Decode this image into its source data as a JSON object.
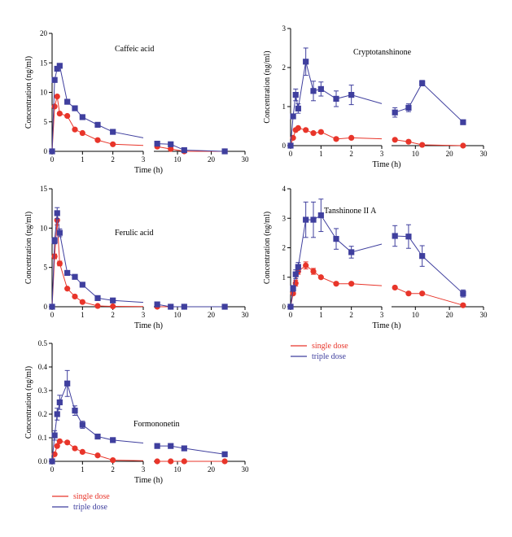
{
  "colors": {
    "single": "#e8352a",
    "triple": "#3f3f9e"
  },
  "legend": {
    "single_label": "single dose",
    "triple_label": "triple dose"
  },
  "chart_data": [
    {
      "type": "line",
      "title": "Caffeic acid",
      "xlabel": "Time (h)",
      "ylabel": "Concentration (ng/ml)",
      "broken_x_axis": true,
      "x_segment_1": [
        0,
        3
      ],
      "x_segment_2": [
        3,
        30
      ],
      "x_ticks_1": [
        0,
        1,
        2,
        3
      ],
      "x_ticks_2": [
        10,
        20,
        30
      ],
      "ylim": [
        0,
        20
      ],
      "y_ticks": [
        0,
        5,
        10,
        15,
        20
      ],
      "series": [
        {
          "name": "single dose",
          "x": [
            0,
            0.083,
            0.167,
            0.25,
            0.5,
            0.75,
            1,
            1.5,
            2,
            4,
            8,
            12,
            24
          ],
          "y": [
            0,
            7.6,
            9.3,
            6.4,
            6.0,
            3.7,
            3.1,
            1.9,
            1.2,
            0.8,
            0.4,
            0.0,
            0.0
          ],
          "err": []
        },
        {
          "name": "triple dose",
          "x": [
            0,
            0.083,
            0.167,
            0.25,
            0.5,
            0.75,
            1,
            1.5,
            2,
            4,
            8,
            12,
            24
          ],
          "y": [
            0,
            12.1,
            14.0,
            14.5,
            8.4,
            7.3,
            5.8,
            4.5,
            3.3,
            1.3,
            1.2,
            0.2,
            0.0
          ],
          "err": []
        }
      ]
    },
    {
      "type": "line",
      "title": "Cryptotanshinone",
      "xlabel": "Time (h)",
      "ylabel": "Concentration (ng/ml)",
      "broken_x_axis": true,
      "x_segment_1": [
        0,
        3
      ],
      "x_segment_2": [
        3,
        30
      ],
      "x_ticks_1": [
        0,
        1,
        2,
        3
      ],
      "x_ticks_2": [
        10,
        20,
        30
      ],
      "ylim": [
        0,
        3
      ],
      "y_ticks": [
        0,
        1,
        2,
        3
      ],
      "series": [
        {
          "name": "single dose",
          "x": [
            0,
            0.083,
            0.167,
            0.25,
            0.5,
            0.75,
            1,
            1.5,
            2,
            4,
            8,
            12,
            24
          ],
          "y": [
            0,
            0.2,
            0.4,
            0.45,
            0.4,
            0.32,
            0.35,
            0.17,
            0.2,
            0.15,
            0.1,
            0.02,
            0.0
          ],
          "err": []
        },
        {
          "name": "triple dose",
          "x": [
            0,
            0.083,
            0.167,
            0.25,
            0.5,
            0.75,
            1,
            1.5,
            2,
            4,
            8,
            12,
            24
          ],
          "y": [
            0,
            0.75,
            1.3,
            0.95,
            2.15,
            1.4,
            1.45,
            1.2,
            1.3,
            0.85,
            0.97,
            1.6,
            0.6
          ],
          "err": [
            0,
            0.05,
            0.15,
            0.12,
            0.35,
            0.25,
            0.18,
            0.2,
            0.25,
            0.12,
            0.1,
            0.07,
            0.03
          ]
        }
      ]
    },
    {
      "type": "line",
      "title": "Ferulic acid",
      "xlabel": "Time (h)",
      "ylabel": "Concentration (ng/ml)",
      "broken_x_axis": true,
      "x_segment_1": [
        0,
        3
      ],
      "x_segment_2": [
        3,
        30
      ],
      "x_ticks_1": [
        0,
        1,
        2,
        3
      ],
      "x_ticks_2": [
        10,
        20,
        30
      ],
      "ylim": [
        0,
        15
      ],
      "y_ticks": [
        0,
        5,
        10,
        15
      ],
      "series": [
        {
          "name": "single dose",
          "x": [
            0,
            0.083,
            0.167,
            0.25,
            0.5,
            0.75,
            1,
            1.5,
            2,
            4,
            8,
            12,
            24
          ],
          "y": [
            0,
            6.4,
            11.0,
            5.5,
            2.3,
            1.3,
            0.6,
            0.1,
            0.05,
            0.0,
            0.0,
            0.0,
            0.0
          ],
          "err": [
            0,
            0.3,
            0.6,
            0.3,
            0,
            0,
            0,
            0,
            0,
            0,
            0,
            0,
            0
          ]
        },
        {
          "name": "triple dose",
          "x": [
            0,
            0.083,
            0.167,
            0.25,
            0.5,
            0.75,
            1,
            1.5,
            2,
            4,
            8,
            12,
            24
          ],
          "y": [
            0,
            8.4,
            11.9,
            9.4,
            4.3,
            3.8,
            2.8,
            1.1,
            0.8,
            0.3,
            0.0,
            0.0,
            0.0
          ],
          "err": [
            0,
            0.4,
            0.7,
            0.5,
            0,
            0,
            0,
            0,
            0,
            0,
            0,
            0,
            0
          ]
        }
      ]
    },
    {
      "type": "line",
      "title": "Tanshinone II A",
      "xlabel": "Time (h)",
      "ylabel": "Concentration (ng/ml)",
      "broken_x_axis": true,
      "x_segment_1": [
        0,
        3
      ],
      "x_segment_2": [
        3,
        30
      ],
      "x_ticks_1": [
        0,
        1,
        2,
        3
      ],
      "x_ticks_2": [
        10,
        20,
        30
      ],
      "ylim": [
        0,
        4
      ],
      "y_ticks": [
        0,
        1,
        2,
        3,
        4
      ],
      "series": [
        {
          "name": "single dose",
          "x": [
            0,
            0.083,
            0.167,
            0.25,
            0.5,
            0.75,
            1,
            1.5,
            2,
            4,
            8,
            12,
            24
          ],
          "y": [
            0,
            0.45,
            0.8,
            1.2,
            1.4,
            1.2,
            1.0,
            0.78,
            0.78,
            0.65,
            0.45,
            0.45,
            0.05
          ],
          "err": [
            0,
            0.05,
            0.1,
            0.1,
            0.12,
            0.1,
            0,
            0,
            0,
            0,
            0,
            0,
            0
          ]
        },
        {
          "name": "triple dose",
          "x": [
            0,
            0.083,
            0.167,
            0.25,
            0.5,
            0.75,
            1,
            1.5,
            2,
            4,
            8,
            12,
            24
          ],
          "y": [
            0,
            0.62,
            1.1,
            1.35,
            2.95,
            2.95,
            3.1,
            2.3,
            1.85,
            2.4,
            2.38,
            1.72,
            0.45
          ],
          "err": [
            0,
            0.1,
            0.15,
            0.15,
            0.6,
            0.6,
            0.55,
            0.35,
            0.2,
            0.35,
            0.4,
            0.35,
            0.12
          ]
        }
      ]
    },
    {
      "type": "line",
      "title": "Formononetin",
      "xlabel": "Time (h)",
      "ylabel": "Concentration (ng/ml)",
      "broken_x_axis": true,
      "x_segment_1": [
        0,
        3
      ],
      "x_segment_2": [
        3,
        30
      ],
      "x_ticks_1": [
        0,
        1,
        2,
        3
      ],
      "x_ticks_2": [
        10,
        20,
        30
      ],
      "ylim": [
        0,
        0.5
      ],
      "y_ticks": [
        0.0,
        0.1,
        0.2,
        0.3,
        0.4,
        0.5
      ],
      "series": [
        {
          "name": "single dose",
          "x": [
            0,
            0.083,
            0.167,
            0.25,
            0.5,
            0.75,
            1,
            1.5,
            2,
            4,
            8,
            12,
            24
          ],
          "y": [
            0,
            0.03,
            0.065,
            0.085,
            0.08,
            0.055,
            0.04,
            0.025,
            0.005,
            0.0,
            0.0,
            0.0,
            0.0
          ],
          "err": []
        },
        {
          "name": "triple dose",
          "x": [
            0,
            0.083,
            0.167,
            0.25,
            0.5,
            0.75,
            1,
            1.5,
            2,
            4,
            8,
            12,
            24
          ],
          "y": [
            0,
            0.11,
            0.2,
            0.25,
            0.33,
            0.215,
            0.155,
            0.105,
            0.09,
            0.065,
            0.065,
            0.055,
            0.03
          ],
          "err": [
            0,
            0.02,
            0.025,
            0.03,
            0.055,
            0.02,
            0.015,
            0.01,
            0.01,
            0.008,
            0.008,
            0.01,
            0.005
          ]
        }
      ]
    }
  ]
}
